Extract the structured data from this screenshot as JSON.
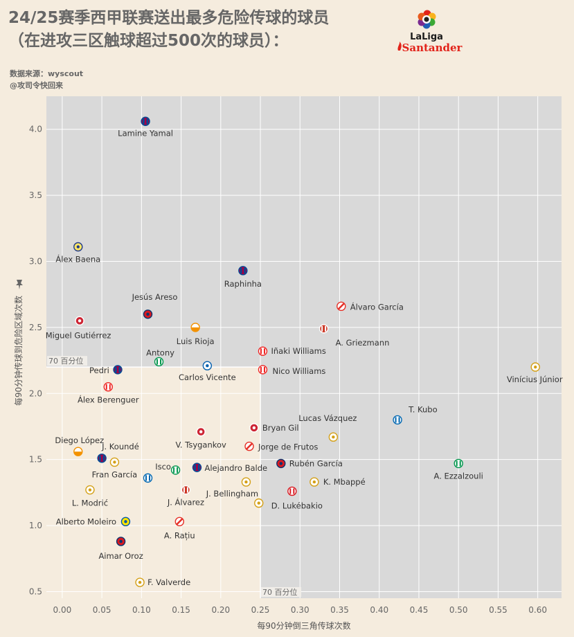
{
  "header": {
    "title_line1": "24/25赛季西甲联赛送出最多危险传球的球员",
    "title_line2": "（在进攻三区触球超过500次的球员）：",
    "source": "数据来源：wyscout",
    "author": "@攻司令快回来",
    "logo_text_1": "LaLiga",
    "logo_text_2": "Santander"
  },
  "colors": {
    "background": "#f5ecde",
    "plot_background": "#d9d9d9",
    "quadrant_fill": "#f5ecde",
    "label_color": "#333333",
    "axis_text": "#666666",
    "santander_red": "#e2231a"
  },
  "chart_data": {
    "type": "scatter",
    "xlabel": "每90分钟倒三角传球次数",
    "ylabel": "每90分钟传球到危险区域次数",
    "xlim": [
      -0.02,
      0.63
    ],
    "ylim": [
      0.45,
      4.25
    ],
    "xticks": [
      0.0,
      0.05,
      0.1,
      0.15,
      0.2,
      0.25,
      0.3,
      0.35,
      0.4,
      0.45,
      0.5,
      0.55,
      0.6
    ],
    "xtick_labels": [
      "0.00",
      "0.05",
      "0.10",
      "0.15",
      "0.20",
      "0.25",
      "0.30",
      "0.35",
      "0.40",
      "0.45",
      "0.50",
      "0.55",
      "0.60"
    ],
    "yticks": [
      0.5,
      1.0,
      1.5,
      2.0,
      2.5,
      3.0,
      3.5,
      4.0
    ],
    "ytick_labels": [
      "0.5",
      "1.0",
      "1.5",
      "2.0",
      "2.5",
      "3.0",
      "3.5",
      "4.0"
    ],
    "grid": true,
    "reference_lines": {
      "x_p70": 0.25,
      "y_p70": 2.2,
      "x_p70_label": "70 百分位",
      "y_p70_label": "70 百分位"
    },
    "points": [
      {
        "name": "Lamine Yamal",
        "x": 0.105,
        "y": 4.06,
        "club": "Barcelona"
      },
      {
        "name": "Álex Baena",
        "x": 0.02,
        "y": 3.11,
        "club": "Villarreal"
      },
      {
        "name": "Raphinha",
        "x": 0.228,
        "y": 2.93,
        "club": "Barcelona"
      },
      {
        "name": "Jesús Areso",
        "x": 0.108,
        "y": 2.6,
        "club": "Osasuna"
      },
      {
        "name": "Álvaro García",
        "x": 0.352,
        "y": 2.66,
        "club": "Rayo Vallecano"
      },
      {
        "name": "Miguel Gutiérrez",
        "x": 0.022,
        "y": 2.55,
        "club": "Girona"
      },
      {
        "name": "Luis Rioja",
        "x": 0.168,
        "y": 2.5,
        "club": "Valencia"
      },
      {
        "name": "A. Griezmann",
        "x": 0.33,
        "y": 2.49,
        "club": "Atlético Madrid"
      },
      {
        "name": "Iñaki Williams",
        "x": 0.253,
        "y": 2.32,
        "club": "Athletic Club"
      },
      {
        "name": "Antony",
        "x": 0.122,
        "y": 2.24,
        "club": "Real Betis"
      },
      {
        "name": "Carlos Vicente",
        "x": 0.183,
        "y": 2.21,
        "club": "Alavés"
      },
      {
        "name": "Pedri",
        "x": 0.07,
        "y": 2.18,
        "club": "Barcelona"
      },
      {
        "name": "Nico Williams",
        "x": 0.253,
        "y": 2.18,
        "club": "Athletic Club"
      },
      {
        "name": "Vinícius Júnior",
        "x": 0.597,
        "y": 2.2,
        "club": "Real Madrid"
      },
      {
        "name": "Álex Berenguer",
        "x": 0.058,
        "y": 2.05,
        "club": "Athletic Club"
      },
      {
        "name": "T. Kubo",
        "x": 0.423,
        "y": 1.8,
        "club": "Real Sociedad"
      },
      {
        "name": "Lucas Vázquez",
        "x": 0.342,
        "y": 1.67,
        "club": "Real Madrid"
      },
      {
        "name": "Bryan Gil",
        "x": 0.242,
        "y": 1.74,
        "club": "Girona"
      },
      {
        "name": "V. Tsygankov",
        "x": 0.175,
        "y": 1.71,
        "club": "Girona"
      },
      {
        "name": "Jorge de Frutos",
        "x": 0.236,
        "y": 1.6,
        "club": "Rayo Vallecano"
      },
      {
        "name": "Diego López",
        "x": 0.02,
        "y": 1.56,
        "club": "Valencia"
      },
      {
        "name": "J. Koundé",
        "x": 0.05,
        "y": 1.51,
        "club": "Barcelona"
      },
      {
        "name": "Fran García",
        "x": 0.066,
        "y": 1.48,
        "club": "Real Madrid"
      },
      {
        "name": "Rubén García",
        "x": 0.276,
        "y": 1.47,
        "club": "Osasuna"
      },
      {
        "name": "A. Ezzalzouli",
        "x": 0.5,
        "y": 1.47,
        "club": "Real Betis"
      },
      {
        "name": "Isco",
        "x": 0.143,
        "y": 1.42,
        "club": "Real Betis"
      },
      {
        "name": "Alejandro Balde",
        "x": 0.17,
        "y": 1.44,
        "club": "Barcelona"
      },
      {
        "name": "J. Bellingham",
        "x": 0.232,
        "y": 1.33,
        "club": "Real Madrid"
      },
      {
        "name": "K. Mbappé",
        "x": 0.318,
        "y": 1.33,
        "club": "Real Madrid"
      },
      {
        "name": "L. Modrić",
        "x": 0.035,
        "y": 1.27,
        "club": "Real Madrid"
      },
      {
        "name": "J. Álvarez",
        "x": 0.156,
        "y": 1.27,
        "club": "Atlético Madrid"
      },
      {
        "name": "D. Lukébakio",
        "x": 0.29,
        "y": 1.26,
        "club": "Sevilla"
      },
      {
        "name": "Alberto Moleiro",
        "x": 0.08,
        "y": 1.03,
        "club": "Las Palmas"
      },
      {
        "name": "A. Rațiu",
        "x": 0.148,
        "y": 1.03,
        "club": "Rayo Vallecano"
      },
      {
        "name": "Aimar Oroz",
        "x": 0.074,
        "y": 0.88,
        "club": "Osasuna"
      },
      {
        "name": "F. Valverde",
        "x": 0.098,
        "y": 0.57,
        "club": "Real Madrid"
      }
    ],
    "unlabeled_points": [
      {
        "x": 0.108,
        "y": 1.36,
        "club": "Real Sociedad"
      },
      {
        "x": 0.248,
        "y": 1.17,
        "club": "Real Madrid"
      }
    ]
  }
}
